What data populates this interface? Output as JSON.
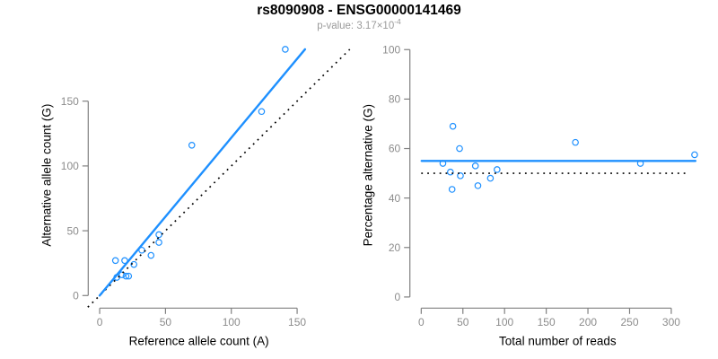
{
  "figure": {
    "title": "rs8090908 - ENSG00000141469",
    "subtitle_prefix": "p-value: 3.17×10",
    "subtitle_exponent": "-4"
  },
  "colors": {
    "point_blue": "#1E90FF",
    "line_blue": "#1E90FF",
    "reference_black": "#000000",
    "axis_gray": "#808080",
    "tick_label_gray": "#8C8C8C",
    "label_black": "#000000",
    "subtitle_gray": "#9B9B9B"
  },
  "chart_data": [
    {
      "type": "scatter",
      "panel": "allele-counts",
      "xlabel": "Reference allele count (A)",
      "ylabel": "Alternative allele count (G)",
      "x_ticks": [
        0,
        50,
        100,
        150
      ],
      "y_ticks": [
        0,
        50,
        100,
        150
      ],
      "xlim": [
        -8.7,
        159.5
      ],
      "ylim": [
        -9.7,
        195.5
      ],
      "grid": false,
      "legend": "none",
      "points": [
        [
          12,
          27
        ],
        [
          19,
          27
        ],
        [
          13,
          14
        ],
        [
          17,
          16
        ],
        [
          20,
          15
        ],
        [
          22,
          15
        ],
        [
          26,
          24
        ],
        [
          32,
          35
        ],
        [
          39,
          31
        ],
        [
          45,
          41
        ],
        [
          45,
          47
        ],
        [
          70,
          116
        ],
        [
          123,
          142
        ],
        [
          141,
          190
        ]
      ],
      "regression_line": {
        "x1": 0,
        "y1": 0,
        "x2": 156,
        "y2": 190,
        "style": "solid"
      },
      "reference_line": {
        "x1": -9,
        "y1": -9,
        "x2": 190,
        "y2": 190,
        "style": "dotted"
      }
    },
    {
      "type": "scatter",
      "panel": "percentage-alternative",
      "xlabel": "Total number of reads",
      "ylabel": "Percentage alternative (G)",
      "x_ticks": [
        0,
        50,
        100,
        150,
        200,
        250,
        300
      ],
      "y_ticks": [
        0,
        20,
        40,
        60,
        80,
        100
      ],
      "xlim": [
        -13.6,
        341
      ],
      "ylim": [
        -4.5,
        103
      ],
      "grid": false,
      "legend": "none",
      "points": [
        [
          26,
          54
        ],
        [
          35,
          50.5
        ],
        [
          37,
          43.5
        ],
        [
          38,
          69
        ],
        [
          46,
          60
        ],
        [
          47,
          49
        ],
        [
          65,
          53
        ],
        [
          68,
          45
        ],
        [
          83,
          48
        ],
        [
          91,
          51.5
        ],
        [
          185,
          62.5
        ],
        [
          263,
          54
        ],
        [
          328,
          57.5
        ]
      ],
      "regression_line": {
        "x1": 0.5,
        "y1": 55,
        "x2": 329,
        "y2": 55,
        "style": "solid"
      },
      "reference_line": {
        "x1": 0,
        "y1": 50,
        "x2": 321,
        "y2": 50,
        "style": "dotted"
      }
    }
  ]
}
